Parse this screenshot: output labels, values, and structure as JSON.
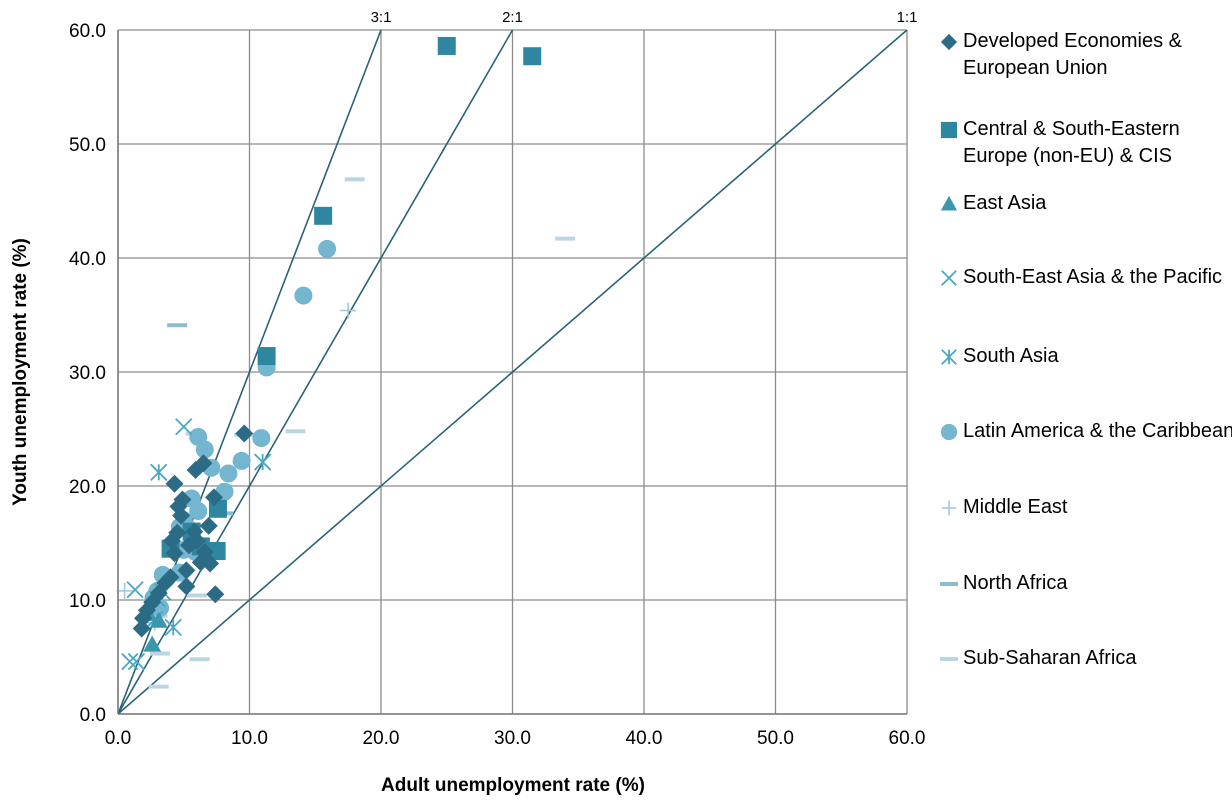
{
  "chart_data": {
    "type": "scatter",
    "title": "",
    "xlabel": "Adult unemployment rate (%)",
    "ylabel": "Youth unemployment rate (%)",
    "xlim": [
      0,
      60
    ],
    "ylim": [
      0,
      60
    ],
    "xticks": [
      "0.0",
      "10.0",
      "20.0",
      "30.0",
      "40.0",
      "50.0",
      "60.0"
    ],
    "yticks": [
      "0.0",
      "10.0",
      "20.0",
      "30.0",
      "40.0",
      "50.0",
      "60.0"
    ],
    "grid": true,
    "legend_position": "right",
    "reference_lines": [
      {
        "label": "3:1",
        "ratio": 3
      },
      {
        "label": "2:1",
        "ratio": 2
      },
      {
        "label": "1:1",
        "ratio": 1
      }
    ],
    "series": [
      {
        "name": "Developed Economies & European Union",
        "marker": "diamond",
        "color": "#2c6b85",
        "points": [
          [
            1.8,
            7.5
          ],
          [
            1.9,
            8.4
          ],
          [
            2.2,
            9.1
          ],
          [
            2.6,
            9.8
          ],
          [
            3.1,
            10.6
          ],
          [
            3.6,
            11.5
          ],
          [
            4.0,
            12.0
          ],
          [
            4.3,
            14.1
          ],
          [
            4.1,
            15.2
          ],
          [
            4.5,
            15.9
          ],
          [
            4.6,
            18.2
          ],
          [
            4.3,
            20.2
          ],
          [
            4.8,
            17.4
          ],
          [
            5.2,
            12.6
          ],
          [
            5.4,
            14.8
          ],
          [
            5.8,
            16.0
          ],
          [
            5.9,
            21.4
          ],
          [
            6.3,
            13.3
          ],
          [
            6.6,
            14.2
          ],
          [
            6.9,
            16.5
          ],
          [
            7.0,
            13.2
          ],
          [
            7.3,
            19.0
          ],
          [
            7.4,
            10.5
          ],
          [
            6.5,
            22.0
          ],
          [
            9.6,
            24.6
          ],
          [
            5.2,
            11.2
          ],
          [
            4.9,
            18.8
          ],
          [
            6.0,
            15.2
          ]
        ]
      },
      {
        "name": "Central & South-Eastern Europe (non-EU) & CIS",
        "marker": "square",
        "color": "#2f86a0",
        "points": [
          [
            25.0,
            58.6
          ],
          [
            31.5,
            57.7
          ],
          [
            15.6,
            43.7
          ],
          [
            11.3,
            31.4
          ],
          [
            4.0,
            14.5
          ],
          [
            7.6,
            18.0
          ],
          [
            7.5,
            14.3
          ],
          [
            6.3,
            14.7
          ],
          [
            5.6,
            16.0
          ]
        ]
      },
      {
        "name": "East Asia",
        "marker": "triangle",
        "color": "#3a97ad",
        "points": [
          [
            2.6,
            6.1
          ],
          [
            3.1,
            8.2
          ],
          [
            2.3,
            8.8
          ]
        ]
      },
      {
        "name": "South-East Asia & the Pacific",
        "marker": "x",
        "color": "#4aa8c2",
        "points": [
          [
            5.0,
            25.2
          ],
          [
            1.3,
            10.9
          ],
          [
            0.9,
            4.6
          ],
          [
            1.4,
            4.6
          ],
          [
            3.4,
            10.7
          ],
          [
            2.8,
            8.3
          ]
        ]
      },
      {
        "name": "South Asia",
        "marker": "star",
        "color": "#4aa8c2",
        "points": [
          [
            3.1,
            21.2
          ],
          [
            11.0,
            22.1
          ],
          [
            4.2,
            7.6
          ],
          [
            3.0,
            10.1
          ]
        ]
      },
      {
        "name": "Latin America & the Caribbean",
        "marker": "circle",
        "color": "#74b6cf",
        "points": [
          [
            15.9,
            40.8
          ],
          [
            14.1,
            36.7
          ],
          [
            11.3,
            30.4
          ],
          [
            10.9,
            24.2
          ],
          [
            6.1,
            24.3
          ],
          [
            6.6,
            23.2
          ],
          [
            9.4,
            22.2
          ],
          [
            7.1,
            21.6
          ],
          [
            8.4,
            21.1
          ],
          [
            8.1,
            19.5
          ],
          [
            5.6,
            18.9
          ],
          [
            6.1,
            17.8
          ],
          [
            5.0,
            17.0
          ],
          [
            5.3,
            16.3
          ],
          [
            4.7,
            16.4
          ],
          [
            5.0,
            14.4
          ],
          [
            5.9,
            14.2
          ],
          [
            4.7,
            12.4
          ],
          [
            3.4,
            12.2
          ],
          [
            3.0,
            10.8
          ],
          [
            2.7,
            10.2
          ],
          [
            3.2,
            9.3
          ]
        ]
      },
      {
        "name": "Middle East",
        "marker": "plus",
        "color": "#9cc8d8",
        "points": [
          [
            17.5,
            35.4
          ],
          [
            0.5,
            10.8
          ],
          [
            2.8,
            8.0
          ]
        ]
      },
      {
        "name": "North Africa",
        "marker": "dash",
        "color": "#8fbccd",
        "points": [
          [
            4.5,
            34.1
          ],
          [
            8.0,
            17.6
          ]
        ]
      },
      {
        "name": "Sub-Saharan Africa",
        "marker": "dash",
        "color": "#bcd6e1",
        "points": [
          [
            18.0,
            46.9
          ],
          [
            34.0,
            41.7
          ],
          [
            13.5,
            24.8
          ],
          [
            9.6,
            24.5
          ],
          [
            5.9,
            24.6
          ],
          [
            6.2,
            4.8
          ],
          [
            3.1,
            2.4
          ],
          [
            3.2,
            5.3
          ],
          [
            3.0,
            8.6
          ],
          [
            6.0,
            10.4
          ]
        ]
      }
    ]
  }
}
